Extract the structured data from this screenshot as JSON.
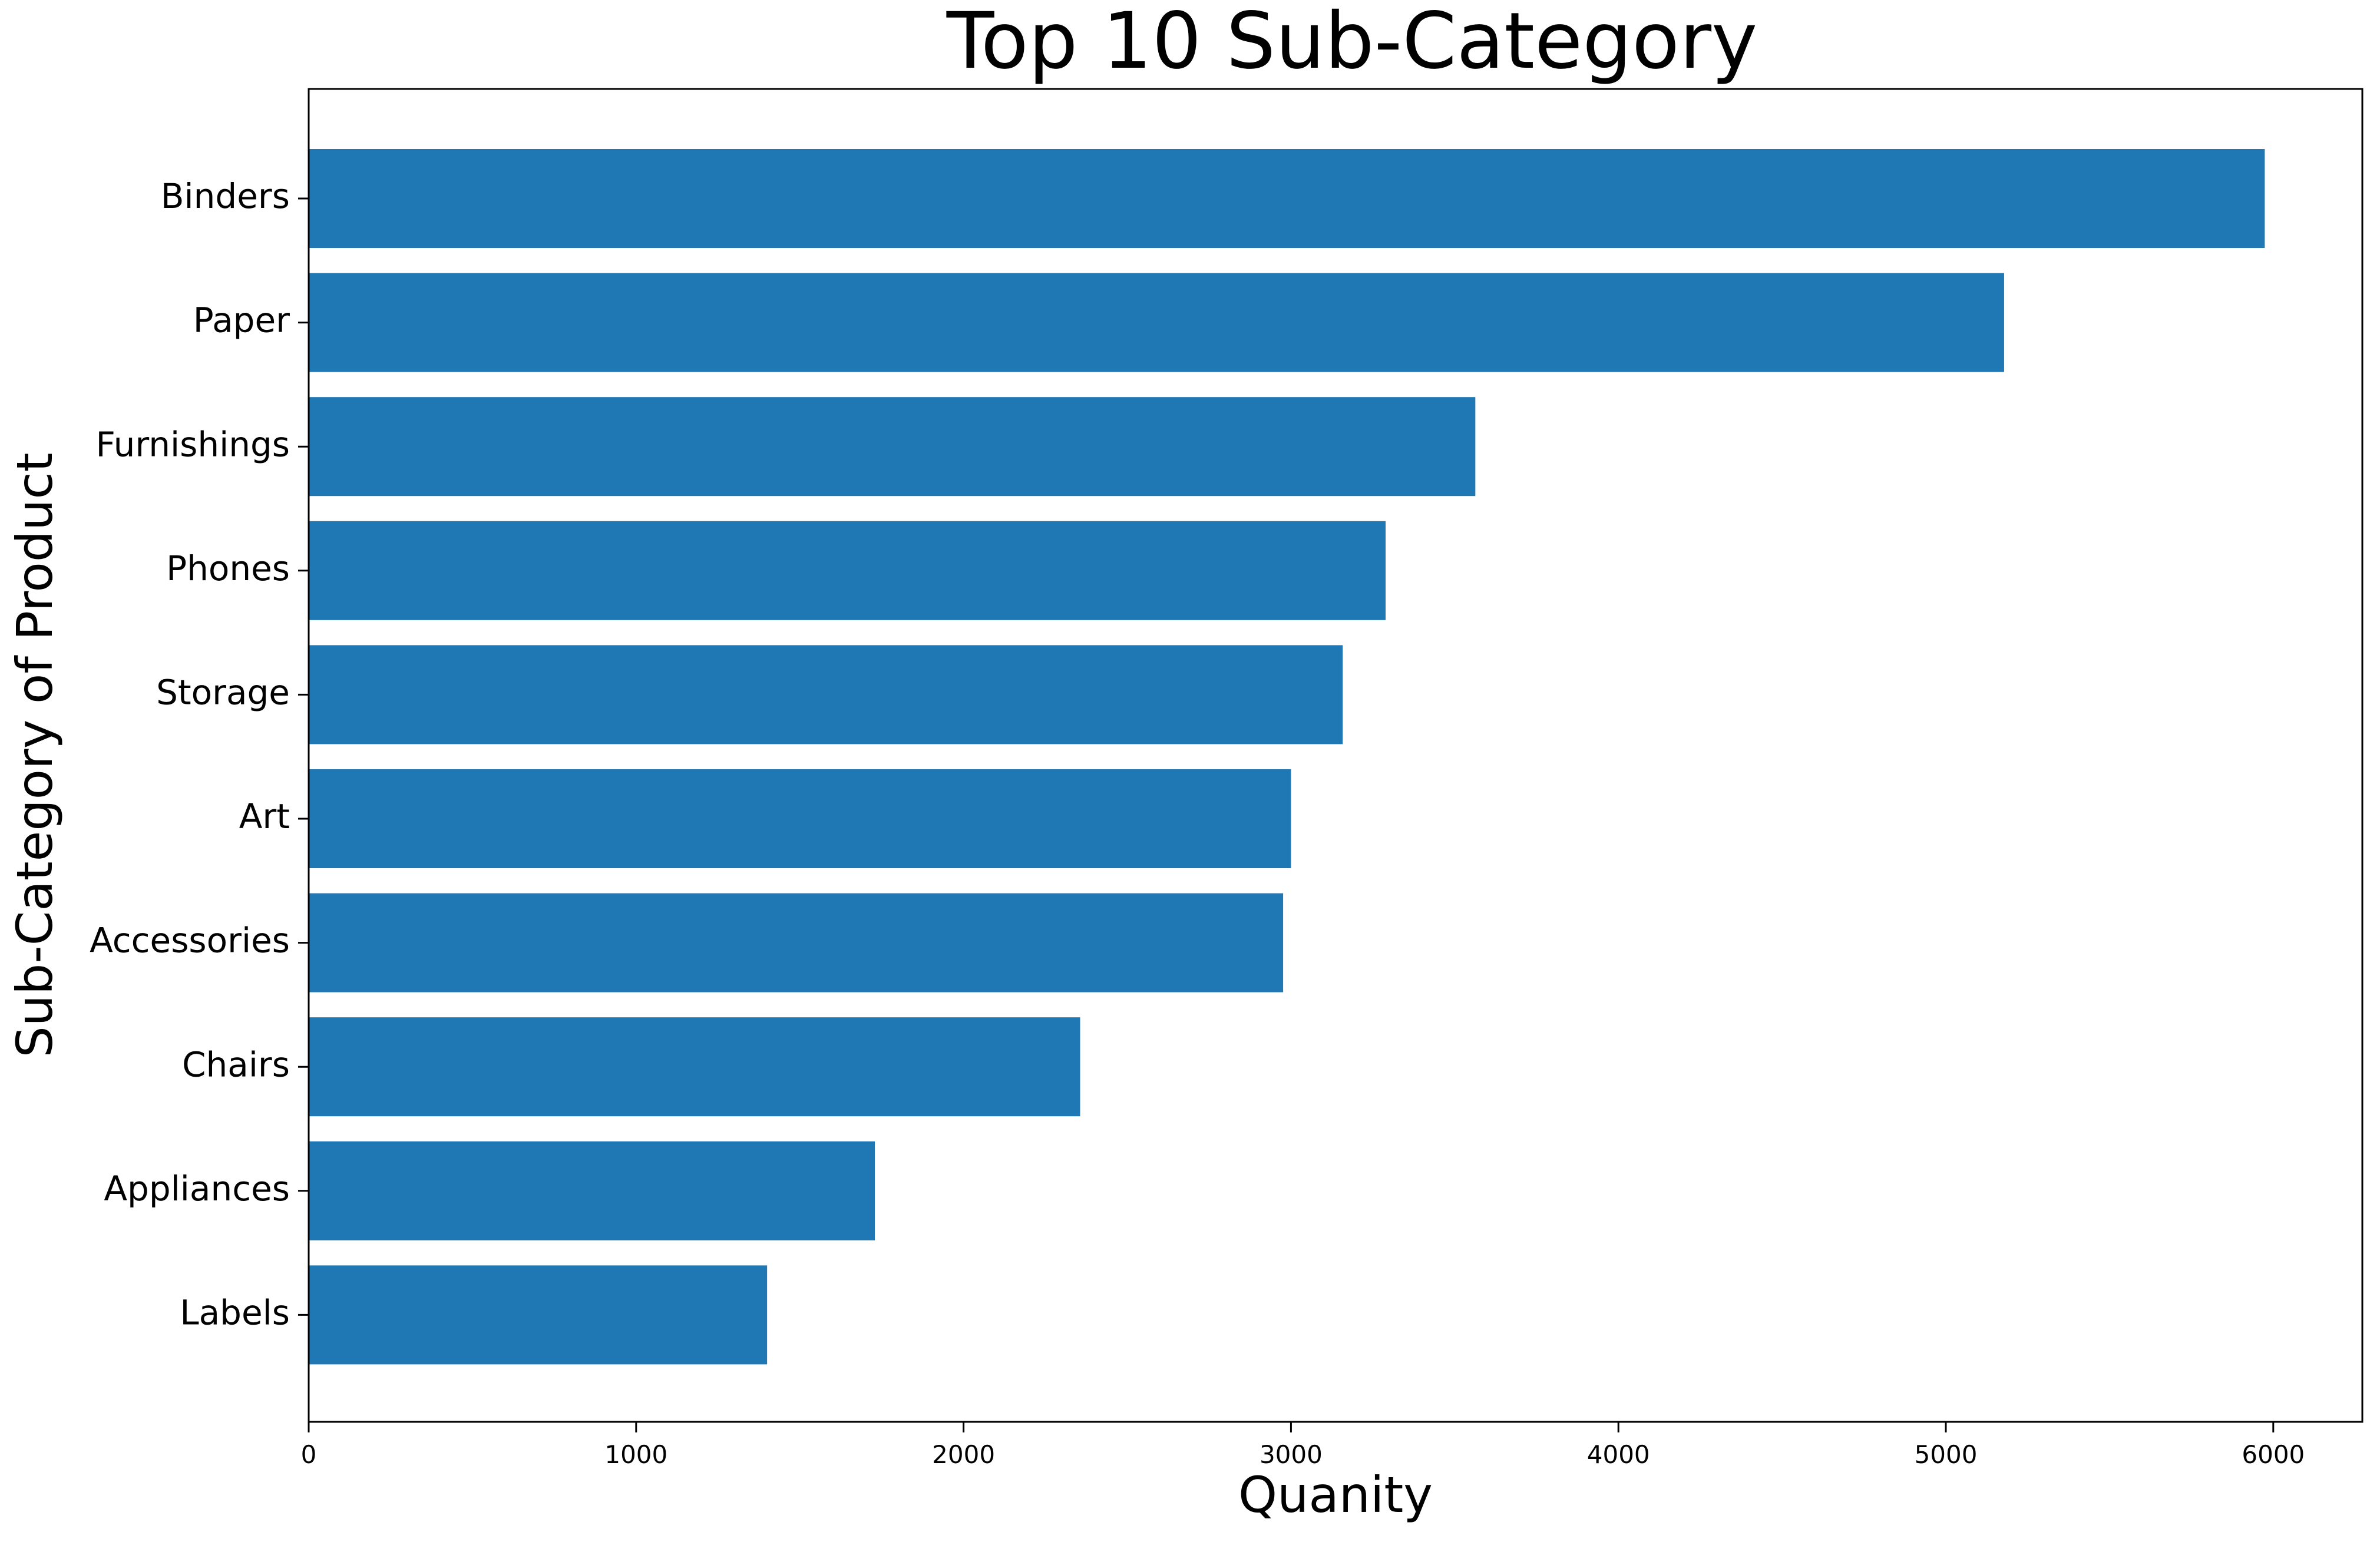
{
  "chart_data": {
    "type": "bar",
    "orientation": "horizontal",
    "title": "Top 10 Sub-Category",
    "xlabel": "Quanity",
    "ylabel": "Sub-Category of Product",
    "categories": [
      "Binders",
      "Paper",
      "Furnishings",
      "Phones",
      "Storage",
      "Art",
      "Accessories",
      "Chairs",
      "Appliances",
      "Labels"
    ],
    "values": [
      5974,
      5178,
      3563,
      3289,
      3158,
      3000,
      2976,
      2356,
      1729,
      1400
    ],
    "xlim": [
      0,
      6272
    ],
    "xticks": [
      0,
      1000,
      2000,
      3000,
      4000,
      5000,
      6000
    ],
    "grid": false,
    "legend": "none",
    "bar_color": "#1f77b4"
  }
}
